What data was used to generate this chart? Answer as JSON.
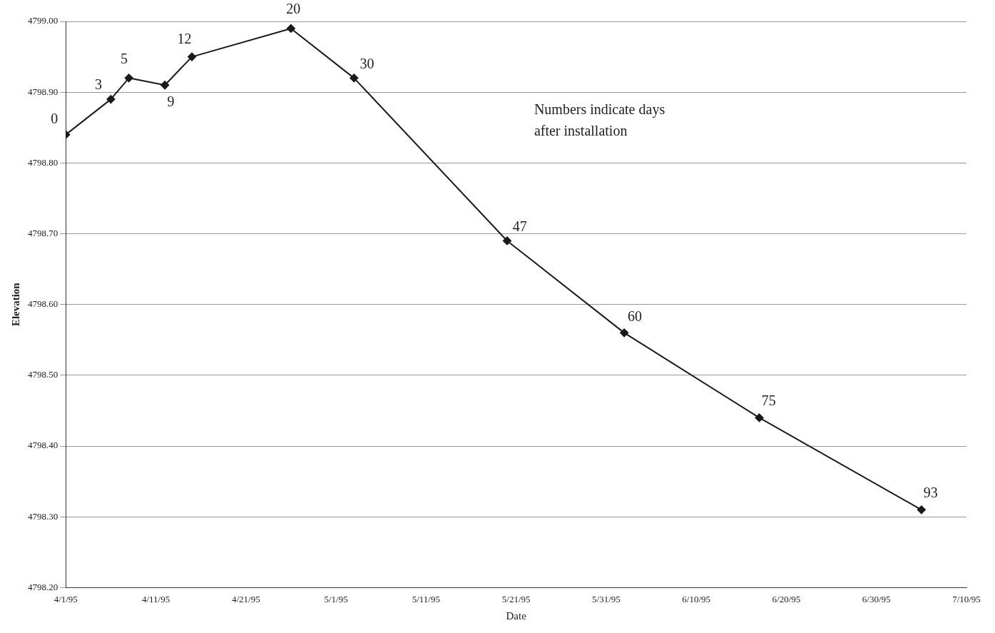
{
  "chart_data": {
    "type": "line",
    "xlabel": "Date",
    "ylabel": "Elevation",
    "x": [
      "1995-04-01",
      "1995-04-06",
      "1995-04-08",
      "1995-04-12",
      "1995-04-15",
      "1995-04-26",
      "1995-05-03",
      "1995-05-20",
      "1995-06-02",
      "1995-06-17",
      "1995-07-05"
    ],
    "series": [
      {
        "color": "#1a1a1a",
        "values": [
          4798.84,
          4798.89,
          4798.92,
          4798.91,
          4798.95,
          4798.99,
          4798.92,
          4798.69,
          4798.56,
          4798.44,
          4798.31
        ]
      }
    ],
    "xlim": [
      "1995-04-01",
      "1995-07-10"
    ],
    "xticks": [
      {
        "value": "1995-04-01",
        "label": "4/1/95"
      },
      {
        "value": "1995-04-11",
        "label": "4/11/95"
      },
      {
        "value": "1995-04-21",
        "label": "4/21/95"
      },
      {
        "value": "1995-05-01",
        "label": "5/1/95"
      },
      {
        "value": "1995-05-11",
        "label": "5/11/95"
      },
      {
        "value": "1995-05-21",
        "label": "5/21/95"
      },
      {
        "value": "1995-05-31",
        "label": "5/31/95"
      },
      {
        "value": "1995-06-10",
        "label": "6/10/95"
      },
      {
        "value": "1995-06-20",
        "label": "6/20/95"
      },
      {
        "value": "1995-06-30",
        "label": "6/30/95"
      },
      {
        "value": "1995-07-10",
        "label": "7/10/95"
      }
    ],
    "ylim": [
      4798.2,
      4799.0
    ],
    "yticks": [
      {
        "value": 4798.2,
        "label": "4798.20"
      },
      {
        "value": 4798.3,
        "label": "4798.30"
      },
      {
        "value": 4798.4,
        "label": "4798.40"
      },
      {
        "value": 4798.5,
        "label": "4798.50"
      },
      {
        "value": 4798.6,
        "label": "4798.60"
      },
      {
        "value": 4798.7,
        "label": "4798.70"
      },
      {
        "value": 4798.8,
        "label": "4798.80"
      },
      {
        "value": 4798.9,
        "label": "4798.90"
      },
      {
        "value": 4799.0,
        "label": "4799.00"
      }
    ],
    "grid": "y",
    "legend": false,
    "marker": "diamond",
    "line_style": "solid",
    "annotations": [
      {
        "text": "0",
        "x": "1995-04-01",
        "y": 4798.84
      },
      {
        "text": "3",
        "x": "1995-04-06",
        "y": 4798.89
      },
      {
        "text": "5",
        "x": "1995-04-08",
        "y": 4798.92
      },
      {
        "text": "9",
        "x": "1995-04-12",
        "y": 4798.91
      },
      {
        "text": "12",
        "x": "1995-04-15",
        "y": 4798.95
      },
      {
        "text": "20",
        "x": "1995-04-26",
        "y": 4798.99
      },
      {
        "text": "30",
        "x": "1995-05-03",
        "y": 4798.92
      },
      {
        "text": "47",
        "x": "1995-05-20",
        "y": 4798.69
      },
      {
        "text": "60",
        "x": "1995-06-02",
        "y": 4798.56
      },
      {
        "text": "75",
        "x": "1995-06-17",
        "y": 4798.44
      },
      {
        "text": "93",
        "x": "1995-07-05",
        "y": 4798.31
      },
      "Numbers indicate days after installation"
    ]
  }
}
